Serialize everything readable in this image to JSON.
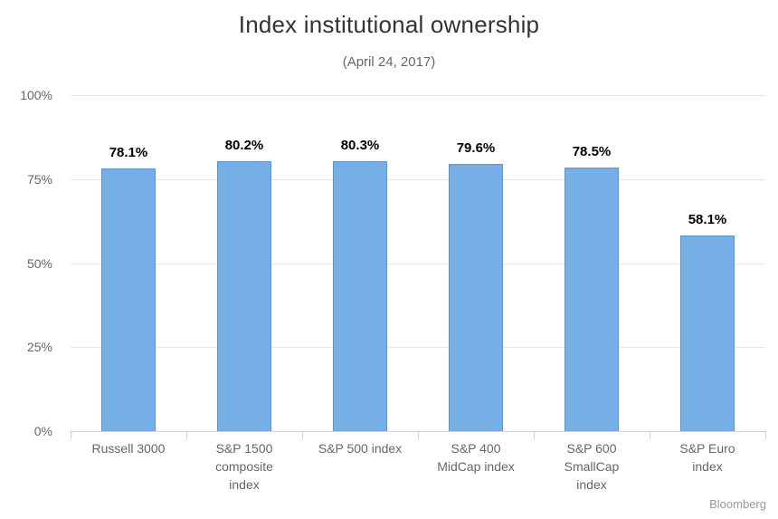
{
  "chart_data": {
    "type": "bar",
    "title": "Index institutional ownership",
    "subtitle": "(April 24, 2017)",
    "categories": [
      "Russell 3000",
      "S&P 1500\ncomposite\nindex",
      "S&P 500 index",
      "S&P 400\nMidCap index",
      "S&P 600\nSmallCap\nindex",
      "S&P Euro\nindex"
    ],
    "values": [
      78.1,
      80.2,
      80.3,
      79.6,
      78.5,
      58.1
    ],
    "value_labels": [
      "78.1%",
      "80.2%",
      "80.3%",
      "79.6%",
      "78.5%",
      "58.1%"
    ],
    "xlabel": "",
    "ylabel": "",
    "ylim": [
      0,
      100
    ],
    "yticks": [
      {
        "value": 0,
        "label": "0%"
      },
      {
        "value": 25,
        "label": "25%"
      },
      {
        "value": 50,
        "label": "50%"
      },
      {
        "value": 75,
        "label": "75%"
      },
      {
        "value": 100,
        "label": "100%"
      }
    ],
    "grid": true,
    "legend": "none",
    "colors": {
      "bar_fill": "#76afe5",
      "bar_border": "#5a96d2",
      "gridline": "#e6e6e6",
      "axis_line": "#ccd1d9",
      "tick": "#ccd1d9",
      "title": "#333333",
      "subtitle": "#666666",
      "axis_label": "#666666",
      "value_label": "#000000",
      "credits": "#999999",
      "background": "#ffffff"
    },
    "credits": "Bloomberg"
  }
}
